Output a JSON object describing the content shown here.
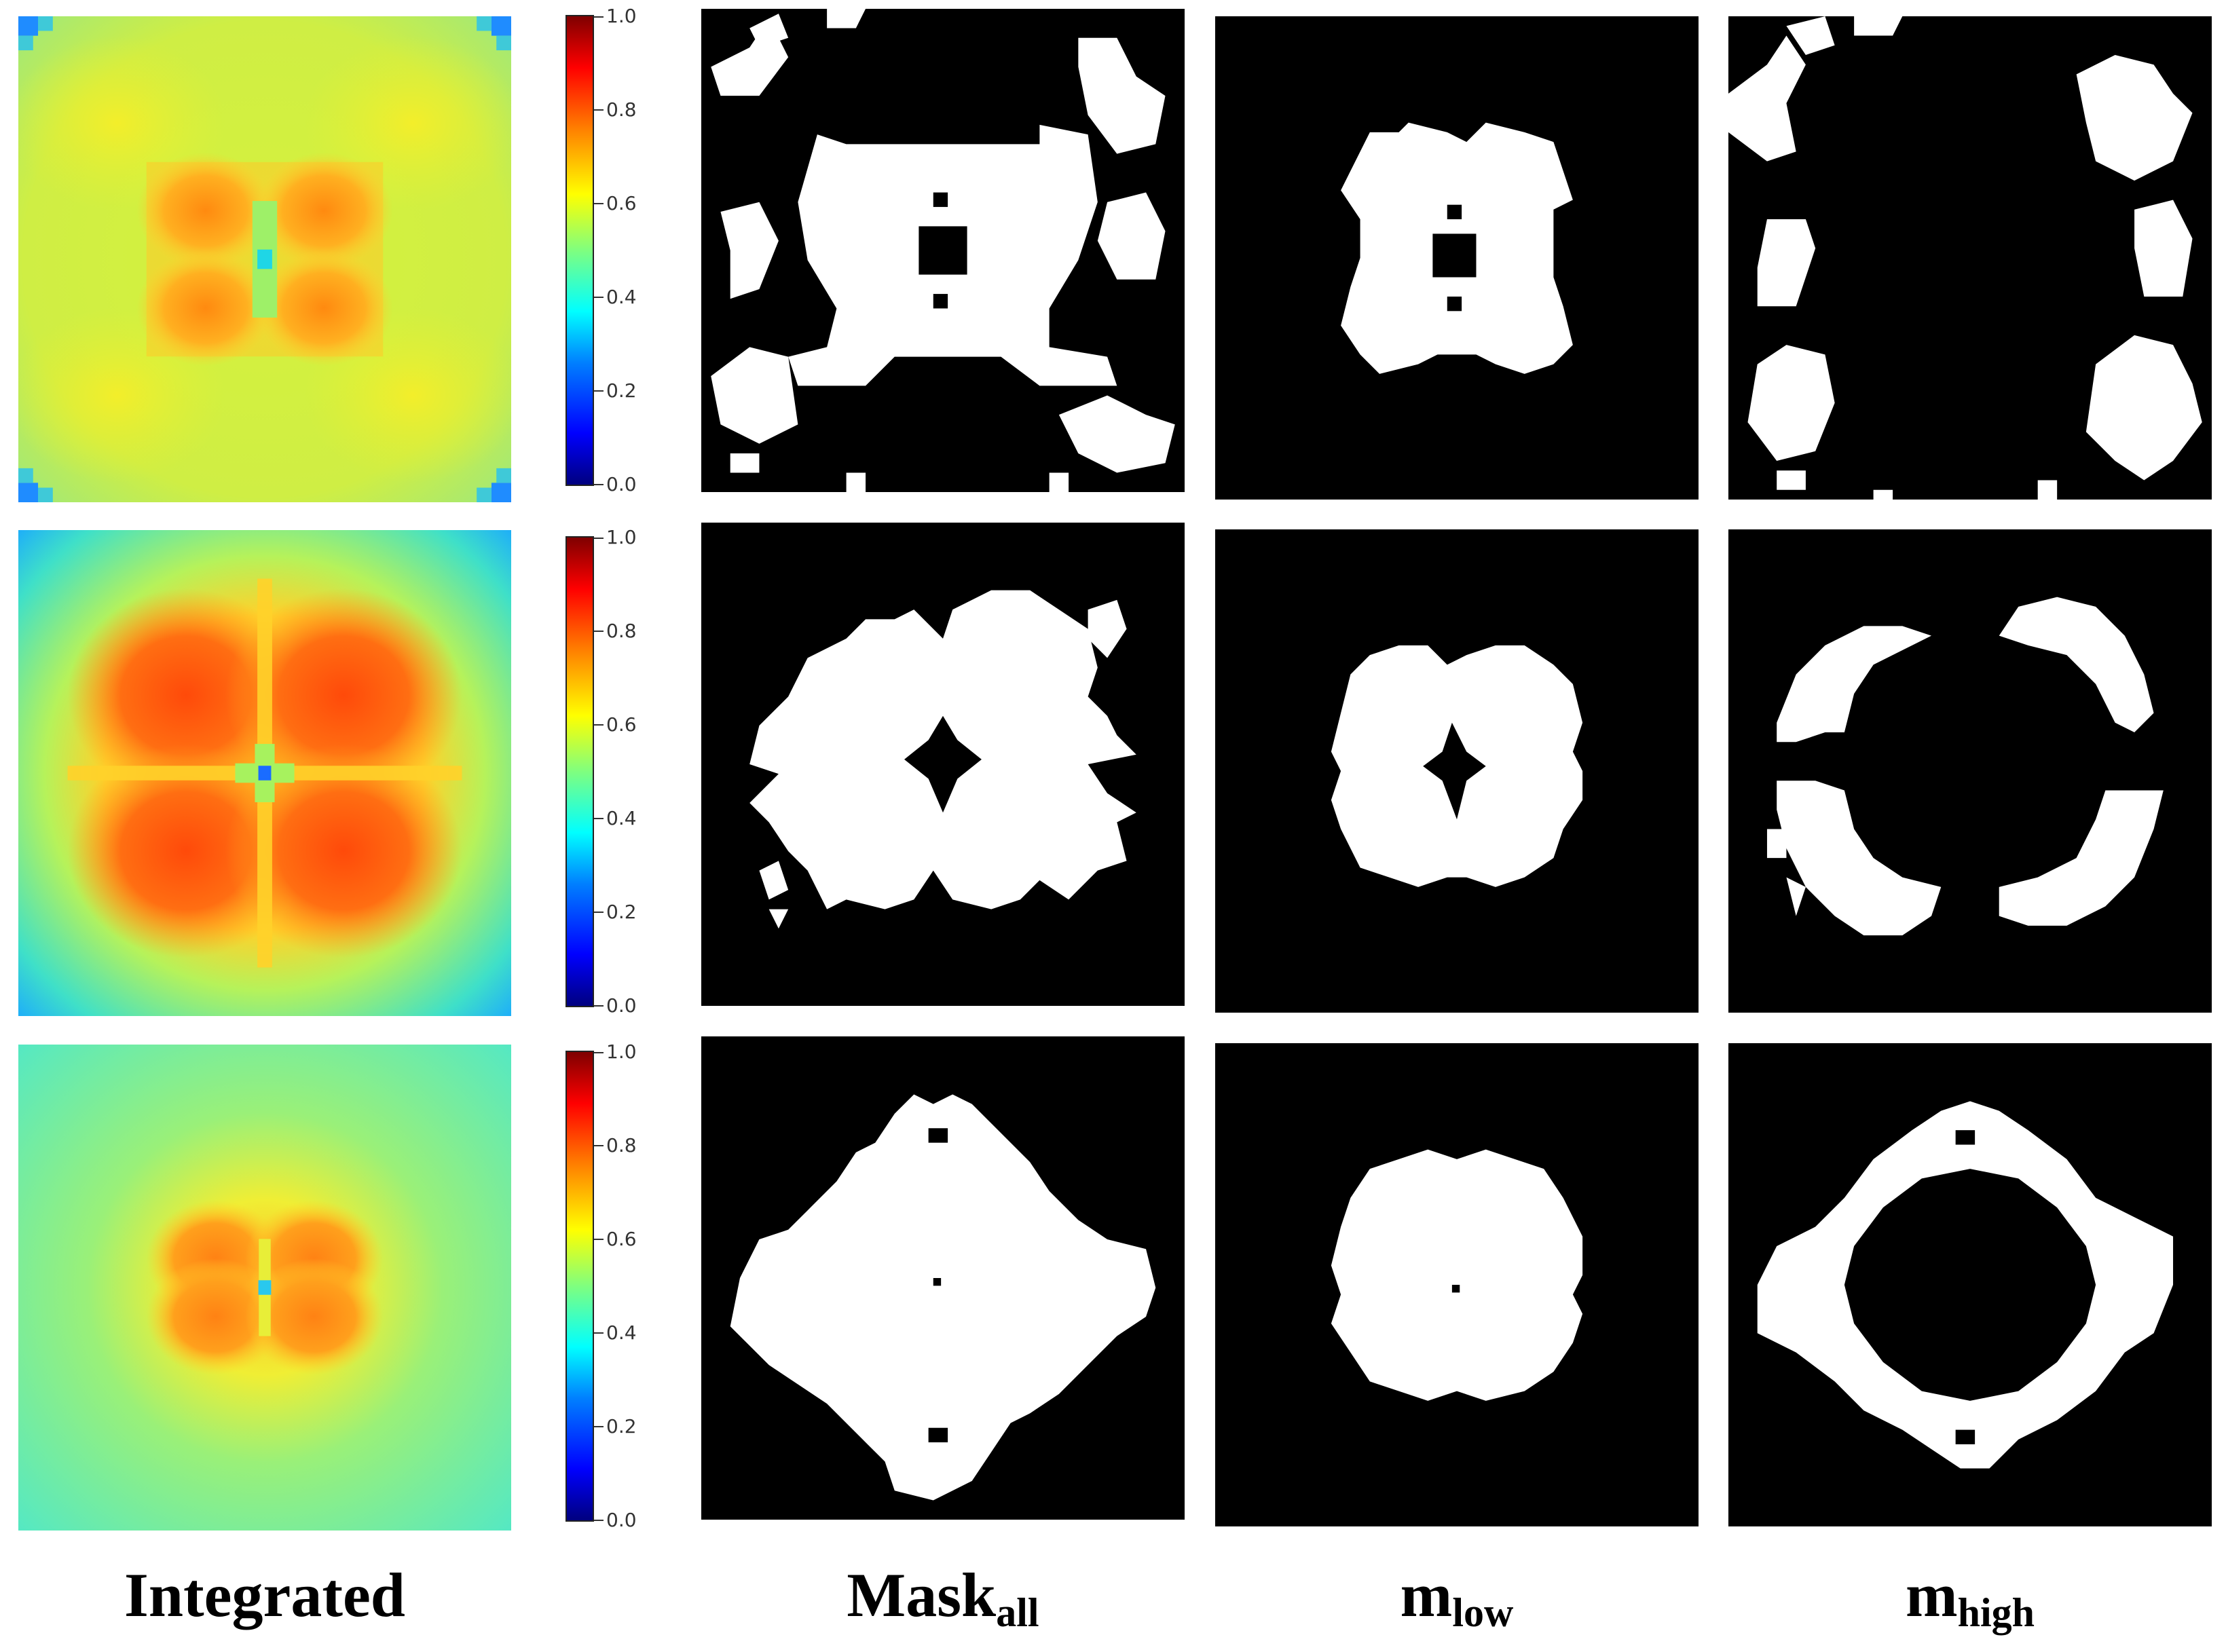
{
  "figure": {
    "column_labels": [
      {
        "main": "Integrated",
        "sub": ""
      },
      {
        "main": "Mask",
        "sub": "all"
      },
      {
        "main": "m",
        "sub": "low"
      },
      {
        "main": "m",
        "sub": "high"
      }
    ],
    "colorbar": {
      "colormap": "jet",
      "ticks": [
        "0.0",
        "0.2",
        "0.4",
        "0.6",
        "0.8",
        "1.0"
      ],
      "range": [
        0.0,
        1.0
      ]
    },
    "colors": {
      "mask_foreground": "#ffffff",
      "mask_background": "#000000"
    },
    "rows": [
      {
        "heatmap_center_value": 0.4,
        "heatmap_lobe_value": 0.78,
        "heatmap_background_value": 0.62,
        "heatmap_corner_value": 0.25
      },
      {
        "heatmap_center_value": 0.35,
        "heatmap_lobe_value": 0.85,
        "heatmap_background_value": 0.42,
        "heatmap_corner_value": 0.3
      },
      {
        "heatmap_center_value": 0.35,
        "heatmap_lobe_value": 0.75,
        "heatmap_background_value": 0.45,
        "heatmap_corner_value": 0.45
      }
    ]
  }
}
